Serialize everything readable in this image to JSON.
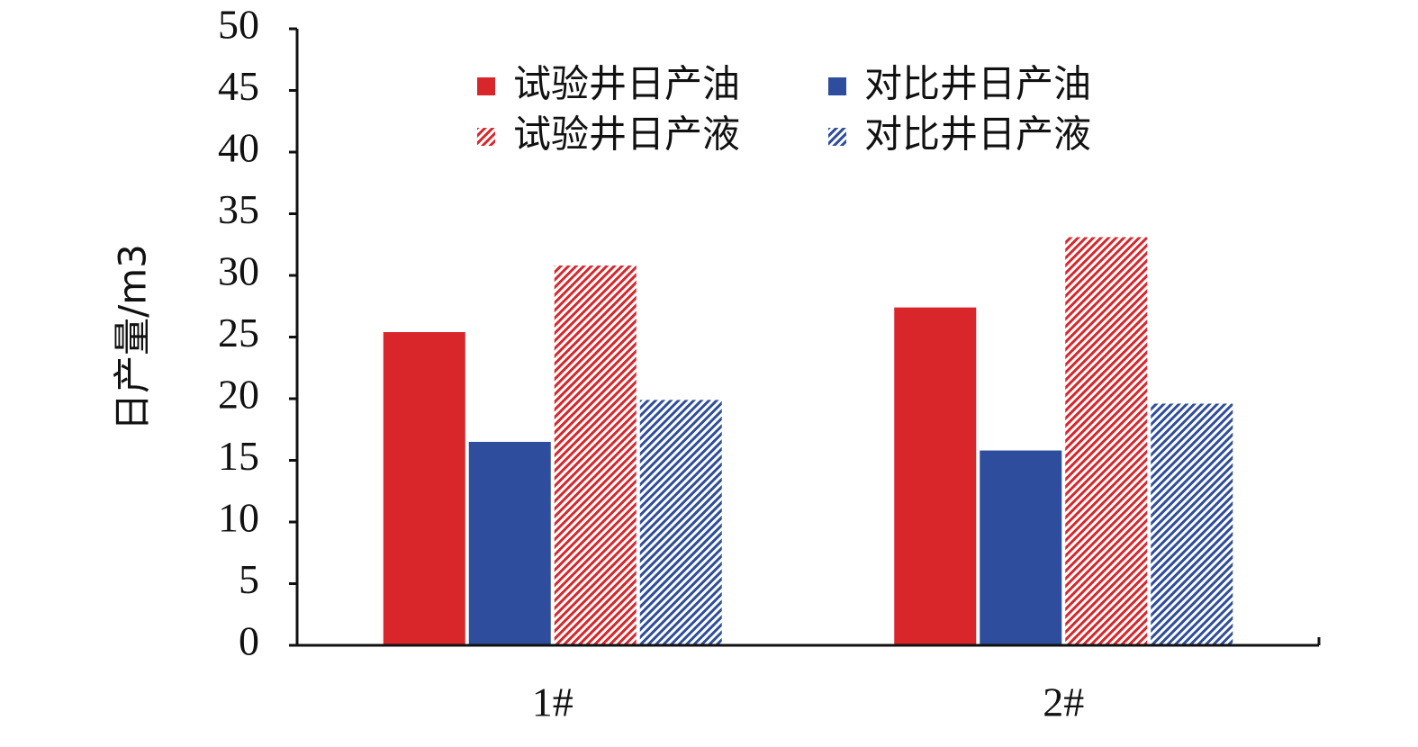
{
  "chart_data": {
    "type": "bar",
    "y_label": "日产量/m3",
    "categories": [
      "1#",
      "2#"
    ],
    "series": [
      {
        "name": "试验井日产油",
        "color": "#d9262a",
        "pattern": "solid",
        "values": [
          25.4,
          27.4
        ]
      },
      {
        "name": "对比井日产油",
        "color": "#2e4d9c",
        "pattern": "solid",
        "values": [
          16.5,
          15.8
        ]
      },
      {
        "name": "试验井日产液",
        "color": "#d9262a",
        "pattern": "hatch",
        "values": [
          30.8,
          33.1
        ]
      },
      {
        "name": "对比井日产液",
        "color": "#2e4d9c",
        "pattern": "hatch",
        "values": [
          19.9,
          19.6
        ]
      }
    ],
    "ylim": [
      0,
      50
    ],
    "yticks": [
      0,
      5,
      10,
      15,
      20,
      25,
      30,
      35,
      40,
      45,
      50
    ],
    "grid": false
  }
}
